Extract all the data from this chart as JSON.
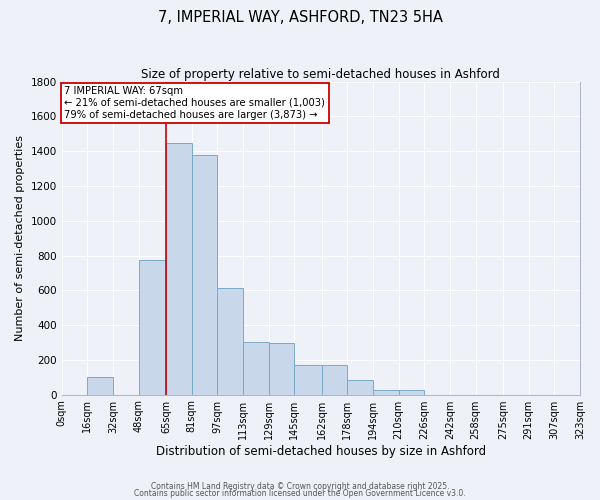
{
  "title": "7, IMPERIAL WAY, ASHFORD, TN23 5HA",
  "subtitle": "Size of property relative to semi-detached houses in Ashford",
  "xlabel": "Distribution of semi-detached houses by size in Ashford",
  "ylabel": "Number of semi-detached properties",
  "bar_color": "#c8d8ea",
  "bar_edge_color": "#7aaac8",
  "background_color": "#eef2f8",
  "grid_color": "#ffffff",
  "bin_edges": [
    0,
    16,
    32,
    48,
    65,
    81,
    97,
    113,
    129,
    145,
    162,
    178,
    194,
    210,
    226,
    242,
    258,
    275,
    291,
    307,
    323
  ],
  "bin_labels": [
    "0sqm",
    "16sqm",
    "32sqm",
    "48sqm",
    "65sqm",
    "81sqm",
    "97sqm",
    "113sqm",
    "129sqm",
    "145sqm",
    "162sqm",
    "178sqm",
    "194sqm",
    "210sqm",
    "226sqm",
    "242sqm",
    "258sqm",
    "275sqm",
    "291sqm",
    "307sqm",
    "323sqm"
  ],
  "bar_heights": [
    0,
    100,
    0,
    775,
    1450,
    1380,
    615,
    300,
    295,
    170,
    170,
    85,
    25,
    25,
    0,
    0,
    0,
    0,
    0,
    0
  ],
  "vline_x": 65,
  "vline_color": "#cc0000",
  "annotation_title": "7 IMPERIAL WAY: 67sqm",
  "annotation_line1": "← 21% of semi-detached houses are smaller (1,003)",
  "annotation_line2": "79% of semi-detached houses are larger (3,873) →",
  "annotation_box_color": "#ffffff",
  "annotation_box_edge": "#cc0000",
  "ylim": [
    0,
    1800
  ],
  "yticks": [
    0,
    200,
    400,
    600,
    800,
    1000,
    1200,
    1400,
    1600,
    1800
  ],
  "footer1": "Contains HM Land Registry data © Crown copyright and database right 2025.",
  "footer2": "Contains public sector information licensed under the Open Government Licence v3.0."
}
